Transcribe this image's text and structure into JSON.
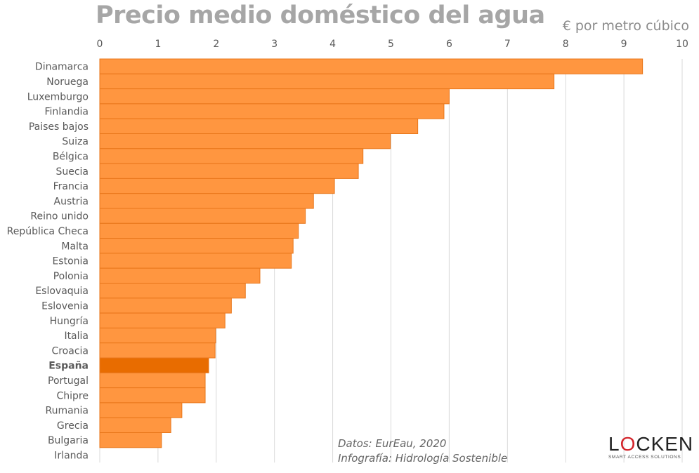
{
  "chart_data": {
    "type": "bar",
    "orientation": "horizontal",
    "title": "Precio medio doméstico del agua",
    "xlabel": "€ por metro cúbico",
    "xlim": [
      0,
      10
    ],
    "xticks": [
      "0",
      "1",
      "2",
      "3",
      "4",
      "5",
      "6",
      "7",
      "8",
      "9",
      "10"
    ],
    "axis_position": "top",
    "grid": true,
    "categories": [
      "Dinamarca",
      "Noruega",
      "Luxemburgo",
      "Finlandia",
      "Paises bajos",
      "Suiza",
      "Bélgica",
      "Suecia",
      "Francia",
      "Austria",
      "Reino unido",
      "República Checa",
      "Malta",
      "Estonia",
      "Polonia",
      "Eslovaquia",
      "Eslovenia",
      "Hungría",
      "Italia",
      "Croacia",
      "España",
      "Portugal",
      "Chipre",
      "Rumania",
      "Grecia",
      "Bulgaria",
      "Irlanda"
    ],
    "values": [
      9.32,
      7.8,
      6.0,
      5.91,
      5.46,
      4.99,
      4.52,
      4.44,
      4.03,
      3.67,
      3.53,
      3.41,
      3.32,
      3.29,
      2.75,
      2.5,
      2.26,
      2.15,
      1.99,
      1.98,
      1.87,
      1.81,
      1.81,
      1.41,
      1.22,
      1.06,
      0
    ],
    "highlight": "España",
    "colors": {
      "bar": "#ff9640",
      "bar_border": "#e8761a",
      "highlight": "#e86c00",
      "grid": "#d9d9d9",
      "text": "#595959"
    }
  },
  "credits": {
    "line1": "Datos: EurEau, 2020",
    "line2": "Infografía: Hidrología Sostenible"
  },
  "logo": {
    "text": "LOCKEN",
    "tagline": "SMART ACCESS SOLUTIONS"
  }
}
